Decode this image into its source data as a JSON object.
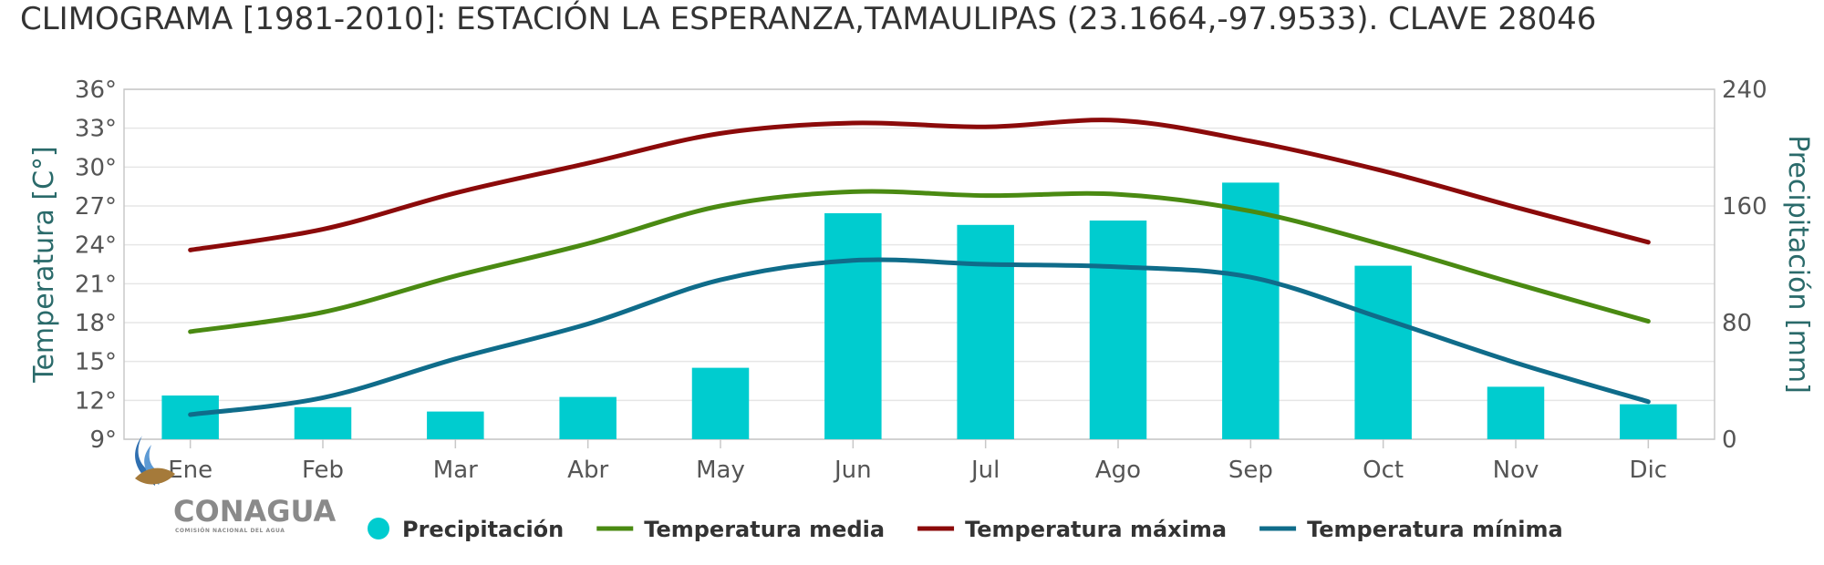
{
  "chart_data": {
    "type": "bar",
    "title": "CLIMOGRAMA [1981-2010]: ESTACIÓN LA ESPERANZA,TAMAULIPAS (23.1664,-97.9533). CLAVE 28046",
    "categories": [
      "Ene",
      "Feb",
      "Mar",
      "Abr",
      "May",
      "Jun",
      "Jul",
      "Ago",
      "Sep",
      "Oct",
      "Nov",
      "Dic"
    ],
    "left_axis": {
      "label": "Temperatura [C°]",
      "ticks": [
        "9°",
        "12°",
        "15°",
        "18°",
        "21°",
        "24°",
        "27°",
        "30°",
        "33°",
        "36°"
      ],
      "ylim": [
        9,
        36
      ]
    },
    "right_axis": {
      "label": "Precipitación [mm]",
      "ticks": [
        "0",
        "80",
        "160",
        "240"
      ],
      "ylim": [
        0,
        240
      ]
    },
    "grid": true,
    "legend_position": "bottom",
    "series": [
      {
        "name": "Precipitación",
        "kind": "bar",
        "axis": "right",
        "color": "#00cccf",
        "values": [
          30,
          22,
          19,
          29,
          49,
          155,
          147,
          150,
          176,
          119,
          36,
          24
        ]
      },
      {
        "name": "Temperatura media",
        "kind": "line",
        "axis": "left",
        "color": "#4a8a12",
        "values": [
          17.3,
          18.8,
          21.6,
          24.1,
          27.0,
          28.1,
          27.8,
          27.9,
          26.6,
          24.0,
          21.0,
          18.1
        ]
      },
      {
        "name": "Temperatura máxima",
        "kind": "line",
        "axis": "left",
        "color": "#8b0a0a",
        "values": [
          23.6,
          25.2,
          28.0,
          30.3,
          32.6,
          33.4,
          33.1,
          33.6,
          32.0,
          29.7,
          26.9,
          24.2
        ]
      },
      {
        "name": "Temperatura mínima",
        "kind": "line",
        "axis": "left",
        "color": "#0f6c8a",
        "values": [
          10.9,
          12.2,
          15.2,
          17.9,
          21.3,
          22.8,
          22.5,
          22.3,
          21.5,
          18.3,
          14.9,
          11.9
        ]
      }
    ]
  },
  "logo": {
    "name": "CONAGUA",
    "subtitle": "COMISIÓN NACIONAL DEL AGUA"
  }
}
